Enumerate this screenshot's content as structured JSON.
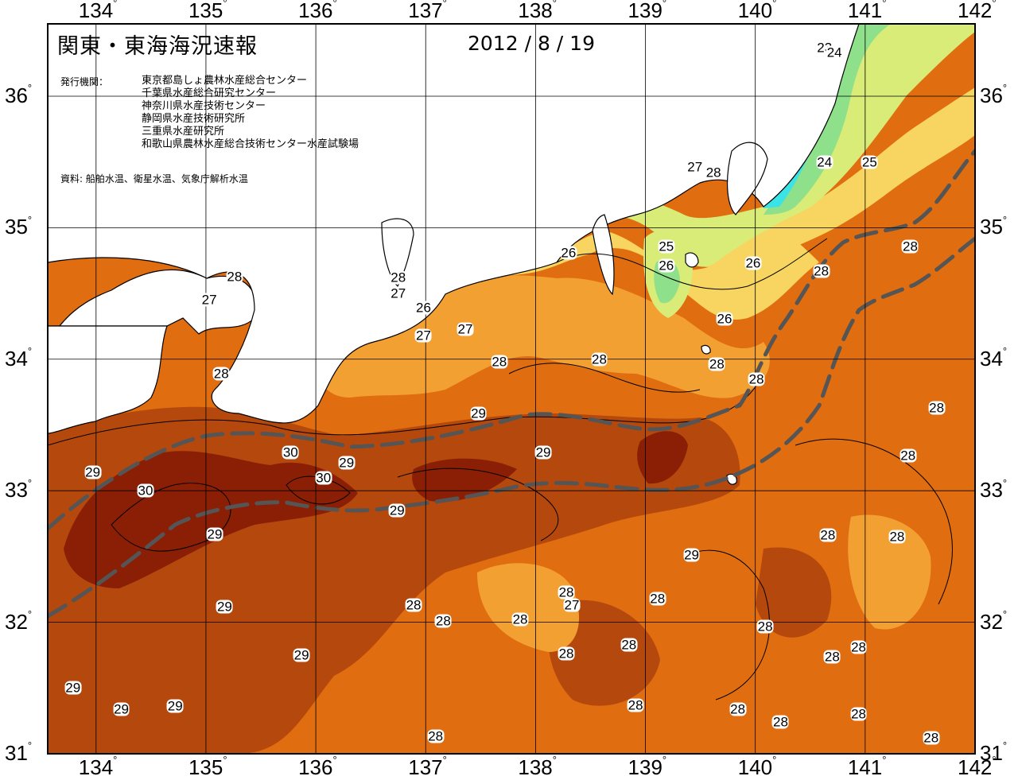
{
  "title": "関東・東海海況速報",
  "date": "2012 / 8 / 19",
  "publisher_label": "発行機関：",
  "publishers": [
    "東京都島しょ農林水産総合センター",
    "千葉県水産総合研究センター",
    "神奈川県水産技術センター",
    "静岡県水産技術研究所",
    "三重県水産研究所",
    "和歌山県農林水産総合技術センター水産試験場"
  ],
  "source": "資料: 船舶水温、衛星水温、気象庁解析水温",
  "axes": {
    "lon_labels": [
      "134",
      "135",
      "136",
      "137",
      "138",
      "139",
      "140",
      "141",
      "142"
    ],
    "lat_labels": [
      "36",
      "35",
      "34",
      "33",
      "32",
      "31"
    ],
    "degree_symbol": "°"
  },
  "colors": {
    "t29plus": "#8a1f06",
    "t29": "#b5480c",
    "t28": "#e06d10",
    "t27": "#f3a032",
    "t26": "#f7d560",
    "t25": "#d9ec78",
    "t24": "#8fe08a",
    "t23": "#39e3e6",
    "land": "#ffffff",
    "kuroshio_axis": "#555555"
  },
  "isotherm_labels": [
    {
      "text": "23",
      "lon": 140.63,
      "lat": 36.37
    },
    {
      "text": "24",
      "lon": 140.72,
      "lat": 36.33
    },
    {
      "text": "24",
      "lon": 140.63,
      "lat": 35.5
    },
    {
      "text": "25",
      "lon": 141.04,
      "lat": 35.5
    },
    {
      "text": "27",
      "lon": 139.45,
      "lat": 35.46
    },
    {
      "text": "28",
      "lon": 139.62,
      "lat": 35.42
    },
    {
      "text": "28",
      "lon": 135.26,
      "lat": 34.63
    },
    {
      "text": "27",
      "lon": 135.03,
      "lat": 34.45
    },
    {
      "text": "28",
      "lon": 136.75,
      "lat": 34.62
    },
    {
      "text": "27",
      "lon": 136.75,
      "lat": 34.5
    },
    {
      "text": "26",
      "lon": 136.98,
      "lat": 34.39
    },
    {
      "text": "27",
      "lon": 136.98,
      "lat": 34.18
    },
    {
      "text": "27",
      "lon": 137.36,
      "lat": 34.23
    },
    {
      "text": "26",
      "lon": 138.3,
      "lat": 34.81
    },
    {
      "text": "25",
      "lon": 139.19,
      "lat": 34.86
    },
    {
      "text": "26",
      "lon": 139.19,
      "lat": 34.71
    },
    {
      "text": "26",
      "lon": 139.98,
      "lat": 34.73
    },
    {
      "text": "26",
      "lon": 139.72,
      "lat": 34.31
    },
    {
      "text": "28",
      "lon": 135.14,
      "lat": 33.89
    },
    {
      "text": "28",
      "lon": 137.67,
      "lat": 33.98
    },
    {
      "text": "28",
      "lon": 138.58,
      "lat": 34.0
    },
    {
      "text": "28",
      "lon": 139.65,
      "lat": 33.96
    },
    {
      "text": "28",
      "lon": 140.01,
      "lat": 33.85
    },
    {
      "text": "28",
      "lon": 140.6,
      "lat": 34.67
    },
    {
      "text": "28",
      "lon": 141.41,
      "lat": 34.86
    },
    {
      "text": "28",
      "lon": 141.65,
      "lat": 33.63
    },
    {
      "text": "28",
      "lon": 141.39,
      "lat": 33.27
    },
    {
      "text": "29",
      "lon": 137.48,
      "lat": 33.59
    },
    {
      "text": "29",
      "lon": 138.07,
      "lat": 33.29
    },
    {
      "text": "29",
      "lon": 136.28,
      "lat": 33.21
    },
    {
      "text": "30",
      "lon": 135.77,
      "lat": 33.29
    },
    {
      "text": "30",
      "lon": 136.07,
      "lat": 33.1
    },
    {
      "text": "30",
      "lon": 134.45,
      "lat": 33.0
    },
    {
      "text": "29",
      "lon": 133.97,
      "lat": 33.14
    },
    {
      "text": "29",
      "lon": 136.74,
      "lat": 32.85
    },
    {
      "text": "29",
      "lon": 135.08,
      "lat": 32.67
    },
    {
      "text": "29",
      "lon": 139.42,
      "lat": 32.51
    },
    {
      "text": "28",
      "lon": 140.66,
      "lat": 32.66
    },
    {
      "text": "28",
      "lon": 141.29,
      "lat": 32.65
    },
    {
      "text": "28",
      "lon": 138.28,
      "lat": 32.23
    },
    {
      "text": "27",
      "lon": 138.33,
      "lat": 32.13
    },
    {
      "text": "28",
      "lon": 139.11,
      "lat": 32.18
    },
    {
      "text": "29",
      "lon": 135.17,
      "lat": 32.12
    },
    {
      "text": "28",
      "lon": 136.89,
      "lat": 32.13
    },
    {
      "text": "28",
      "lon": 137.16,
      "lat": 32.01
    },
    {
      "text": "28",
      "lon": 137.86,
      "lat": 32.02
    },
    {
      "text": "28",
      "lon": 140.09,
      "lat": 31.97
    },
    {
      "text": "28",
      "lon": 138.85,
      "lat": 31.83
    },
    {
      "text": "28",
      "lon": 140.94,
      "lat": 31.81
    },
    {
      "text": "28",
      "lon": 140.7,
      "lat": 31.74
    },
    {
      "text": "28",
      "lon": 138.28,
      "lat": 31.76
    },
    {
      "text": "29",
      "lon": 135.87,
      "lat": 31.75
    },
    {
      "text": "29",
      "lon": 133.79,
      "lat": 31.5
    },
    {
      "text": "29",
      "lon": 134.23,
      "lat": 31.34
    },
    {
      "text": "29",
      "lon": 134.72,
      "lat": 31.36
    },
    {
      "text": "28",
      "lon": 138.91,
      "lat": 31.37
    },
    {
      "text": "28",
      "lon": 139.84,
      "lat": 31.34
    },
    {
      "text": "28",
      "lon": 140.23,
      "lat": 31.24
    },
    {
      "text": "28",
      "lon": 140.94,
      "lat": 31.3
    },
    {
      "text": "28",
      "lon": 137.09,
      "lat": 31.13
    },
    {
      "text": "28",
      "lon": 141.6,
      "lat": 31.12
    }
  ]
}
